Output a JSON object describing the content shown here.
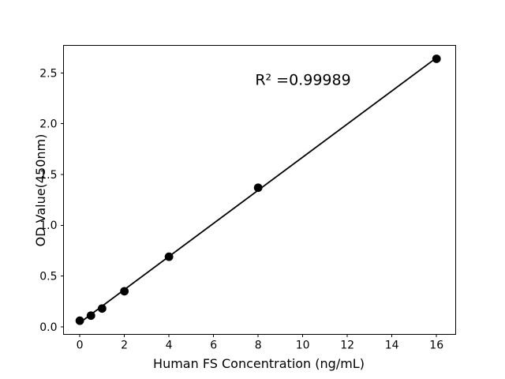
{
  "figure": {
    "background": "#ffffff"
  },
  "chart_data": {
    "type": "scatter",
    "title": "",
    "xlabel": "Human FS Concentration (ng/mL)",
    "ylabel": "OD Value(450nm)",
    "annotation": "R² =0.99989",
    "x": [
      0,
      0.5,
      1,
      2,
      4,
      8,
      16
    ],
    "y": [
      0.06,
      0.11,
      0.18,
      0.35,
      0.69,
      1.37,
      2.64
    ],
    "fit_line": {
      "x": [
        0,
        16
      ],
      "y": [
        0.04,
        2.65
      ]
    },
    "xlim": [
      -0.73,
      16.86
    ],
    "ylim": [
      -0.075,
      2.772
    ],
    "xticks": [
      0,
      2,
      4,
      6,
      8,
      10,
      12,
      14,
      16
    ],
    "xtick_labels": [
      "0",
      "2",
      "4",
      "6",
      "8",
      "10",
      "12",
      "14",
      "16"
    ],
    "yticks": [
      0,
      0.5,
      1,
      1.5,
      2,
      2.5
    ],
    "ytick_labels": [
      "0.0",
      "0.5",
      "1.0",
      "1.5",
      "2.0",
      "2.5"
    ],
    "grid": false,
    "legend": false,
    "colors": {
      "marker": "#000000",
      "line": "#000000",
      "axis": "#000000",
      "tick_text": "#000000",
      "background": "#ffffff"
    }
  }
}
